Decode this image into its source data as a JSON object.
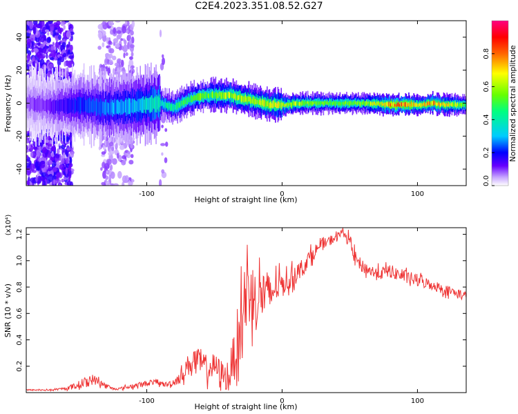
{
  "title": "C2E4.2023.351.08.52.G27",
  "chart_data": [
    {
      "type": "heatmap",
      "xlabel": "Height of straight line (km)",
      "ylabel": "Frequency (Hz)",
      "xlim": [
        -189,
        136
      ],
      "ylim": [
        -50,
        50
      ],
      "x_ticks": [
        "-100",
        "0",
        "100"
      ],
      "x_tick_values": [
        -100,
        0,
        100
      ],
      "y_ticks": [
        "-40",
        "-20",
        "0",
        "20",
        "40"
      ],
      "y_tick_values": [
        -40,
        -20,
        0,
        20,
        40
      ],
      "colorbar": {
        "label": "Normalized spectral amplitude",
        "range": [
          0.0,
          1.0
        ],
        "ticks": [
          "0.0",
          "0.2",
          "0.4",
          "0.6",
          "0.8"
        ],
        "tick_values": [
          0.0,
          0.2,
          0.4,
          0.6,
          0.8
        ],
        "colormap": "rainbow (violet → blue → cyan → green → yellow → red → magenta)"
      },
      "ridge": {
        "x": [
          -189,
          -170,
          -150,
          -130,
          -110,
          -100,
          -90,
          -80,
          -70,
          -60,
          -50,
          -40,
          -30,
          -20,
          -10,
          0,
          20,
          40,
          60,
          80,
          90,
          100,
          110,
          120,
          136
        ],
        "y": [
          0,
          -2,
          -1,
          -3,
          -2,
          -1,
          0,
          -3,
          2,
          4,
          5,
          5,
          3,
          1,
          -1,
          -1,
          0,
          0,
          0,
          -1,
          -1,
          -1,
          0,
          -1,
          -1
        ],
        "amplitude": [
          0.1,
          0.15,
          0.25,
          0.3,
          0.35,
          0.4,
          0.45,
          0.5,
          0.55,
          0.6,
          0.65,
          0.7,
          0.7,
          0.7,
          0.75,
          0.75,
          0.65,
          0.6,
          0.65,
          0.9,
          0.95,
          0.75,
          0.85,
          0.8,
          0.6
        ]
      },
      "noise_regions_x": [
        [
          -189,
          -155
        ],
        [
          -135,
          -110
        ],
        [
          -90,
          -85
        ]
      ]
    },
    {
      "type": "line",
      "xlabel": "Height of straight line (km)",
      "ylabel": "SNR (10 * v/v)",
      "y_multiplier": "(x10⁴)",
      "xlim": [
        -189,
        136
      ],
      "ylim": [
        0,
        1.25
      ],
      "x_ticks": [
        "-100",
        "0",
        "100"
      ],
      "x_tick_values": [
        -100,
        0,
        100
      ],
      "y_ticks": [
        "0.2",
        "0.4",
        "0.6",
        "0.8",
        "1.0",
        "1.2"
      ],
      "y_tick_values": [
        0.2,
        0.4,
        0.6,
        0.8,
        1.0,
        1.2
      ],
      "color": "#ee3333",
      "series": [
        {
          "x": [
            -189,
            -170,
            -160,
            -150,
            -145,
            -140,
            -135,
            -130,
            -125,
            -120,
            -110,
            -100,
            -95,
            -90,
            -85,
            -80,
            -75,
            -70,
            -65,
            -60,
            -55,
            -50,
            -45,
            -40,
            -35,
            -30,
            -25,
            -20,
            -15,
            -10,
            -5,
            0,
            5,
            10,
            15,
            20,
            25,
            30,
            35,
            40,
            45,
            50,
            55,
            60,
            70,
            80,
            90,
            100,
            110,
            120,
            130,
            136
          ],
          "y": [
            0.02,
            0.02,
            0.03,
            0.06,
            0.08,
            0.1,
            0.08,
            0.05,
            0.03,
            0.03,
            0.05,
            0.07,
            0.08,
            0.07,
            0.06,
            0.08,
            0.12,
            0.2,
            0.25,
            0.22,
            0.18,
            0.2,
            0.15,
            0.1,
            0.3,
            0.55,
            0.8,
            0.7,
            0.75,
            0.72,
            0.8,
            0.82,
            0.85,
            0.9,
            0.95,
            1.02,
            1.08,
            1.12,
            1.15,
            1.18,
            1.22,
            1.15,
            1.0,
            0.95,
            0.9,
            0.92,
            0.88,
            0.85,
            0.82,
            0.78,
            0.75,
            0.73
          ],
          "noise_amplitude": [
            0.005,
            0.005,
            0.01,
            0.03,
            0.04,
            0.04,
            0.03,
            0.02,
            0.01,
            0.01,
            0.02,
            0.02,
            0.02,
            0.02,
            0.02,
            0.03,
            0.05,
            0.08,
            0.1,
            0.1,
            0.1,
            0.1,
            0.1,
            0.1,
            0.2,
            0.3,
            0.3,
            0.25,
            0.22,
            0.2,
            0.12,
            0.1,
            0.08,
            0.08,
            0.07,
            0.06,
            0.05,
            0.04,
            0.04,
            0.03,
            0.03,
            0.05,
            0.05,
            0.05,
            0.05,
            0.05,
            0.05,
            0.05,
            0.04,
            0.04,
            0.04,
            0.04
          ]
        }
      ]
    }
  ]
}
